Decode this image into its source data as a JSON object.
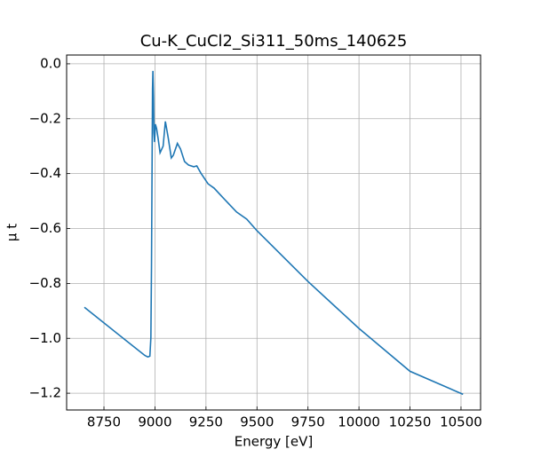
{
  "chart_data": {
    "type": "line",
    "title": "Cu-K_CuCl2_Si311_50ms_140625",
    "x_label": "Energy [eV]",
    "y_label": "μ t",
    "color": "#1f77b4",
    "grid": true,
    "x": [
      8654,
      8750,
      8850,
      8950,
      8965,
      8975,
      8980,
      8983,
      8985,
      8988,
      8990,
      8993,
      8995,
      8998,
      9002,
      9008,
      9015,
      9025,
      9040,
      9051,
      9065,
      9080,
      9090,
      9110,
      9125,
      9145,
      9165,
      9190,
      9205,
      9225,
      9260,
      9290,
      9330,
      9400,
      9450,
      9500,
      9750,
      10000,
      10250,
      10510
    ],
    "values": [
      -0.887,
      -0.944,
      -1.003,
      -1.062,
      -1.068,
      -1.065,
      -0.997,
      -0.738,
      -0.479,
      -0.091,
      -0.026,
      -0.123,
      -0.252,
      -0.285,
      -0.22,
      -0.236,
      -0.27,
      -0.324,
      -0.3,
      -0.21,
      -0.27,
      -0.343,
      -0.333,
      -0.29,
      -0.31,
      -0.356,
      -0.369,
      -0.375,
      -0.372,
      -0.398,
      -0.437,
      -0.453,
      -0.485,
      -0.54,
      -0.566,
      -0.608,
      -0.793,
      -0.964,
      -1.12,
      -1.204
    ],
    "xlim": [
      8567,
      10596
    ],
    "ylim": [
      -1.261,
      0.032
    ],
    "xticks": [
      8750,
      9000,
      9250,
      9500,
      9750,
      10000,
      10250,
      10500
    ],
    "yticks": [
      {
        "value": 0,
        "label": "0.0"
      },
      {
        "value": -0.2,
        "label": "−0.2"
      },
      {
        "value": -0.4,
        "label": "−0.4"
      },
      {
        "value": -0.6,
        "label": "−0.6"
      },
      {
        "value": -0.8,
        "label": "−0.8"
      },
      {
        "value": -1.0,
        "label": "−1.0"
      },
      {
        "value": -1.2,
        "label": "−1.2"
      }
    ]
  }
}
